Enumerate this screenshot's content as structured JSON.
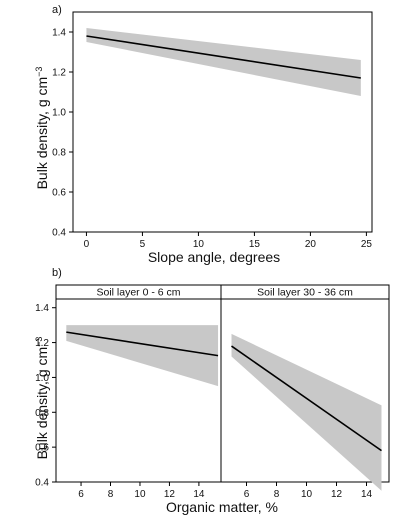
{
  "chart_data": [
    {
      "type": "line",
      "panel_label": "a)",
      "xlabel": "Slope angle, degrees",
      "ylabel_main": "Bulk density, g cm",
      "ylabel_sup": "−3",
      "xlim": [
        -1.2,
        25.5
      ],
      "ylim": [
        0.4,
        1.5
      ],
      "xticks": [
        0,
        5,
        10,
        15,
        20,
        25
      ],
      "yticks": [
        0.4,
        0.6,
        0.8,
        1.0,
        1.2,
        1.4
      ],
      "ytick_labels": [
        "0.4",
        "0.6",
        "0.8",
        "1.0",
        "1.2",
        "1.4"
      ],
      "fit_line": {
        "x": [
          0,
          24.5
        ],
        "y": [
          1.38,
          1.17
        ]
      },
      "confidence_band": {
        "x": [
          0,
          24.5
        ],
        "lower": [
          1.35,
          1.08
        ],
        "upper": [
          1.42,
          1.26
        ]
      }
    },
    {
      "type": "line",
      "panel_label": "b)",
      "xlabel": "Organic matter, %",
      "ylabel_main": "Bulk density, g cm",
      "ylabel_sup": "−3",
      "ylim": [
        0.4,
        1.45
      ],
      "yticks": [
        0.4,
        0.6,
        0.8,
        1.0,
        1.2,
        1.4
      ],
      "ytick_labels": [
        "0.4",
        "0.6",
        "0.8",
        "1.0",
        "1.2",
        "1.4"
      ],
      "facets": [
        {
          "strip": "Soil layer 0 - 6 cm",
          "xlim": [
            4.3,
            15.5
          ],
          "xticks": [
            6,
            8,
            10,
            12,
            14
          ],
          "fit_line": {
            "x": [
              5,
              15.3
            ],
            "y": [
              1.26,
              1.125
            ]
          },
          "confidence_band": {
            "x": [
              5,
              15.3
            ],
            "lower": [
              1.21,
              0.95
            ],
            "upper": [
              1.3,
              1.3
            ]
          }
        },
        {
          "strip": "Soil layer 30 - 36 cm",
          "xlim": [
            4.3,
            15.5
          ],
          "xticks": [
            6,
            8,
            10,
            12,
            14
          ],
          "fit_line": {
            "x": [
              5,
              15
            ],
            "y": [
              1.18,
              0.58
            ]
          },
          "confidence_band": {
            "x": [
              5,
              15
            ],
            "lower": [
              1.12,
              0.35
            ],
            "upper": [
              1.25,
              0.84
            ]
          }
        }
      ]
    }
  ]
}
